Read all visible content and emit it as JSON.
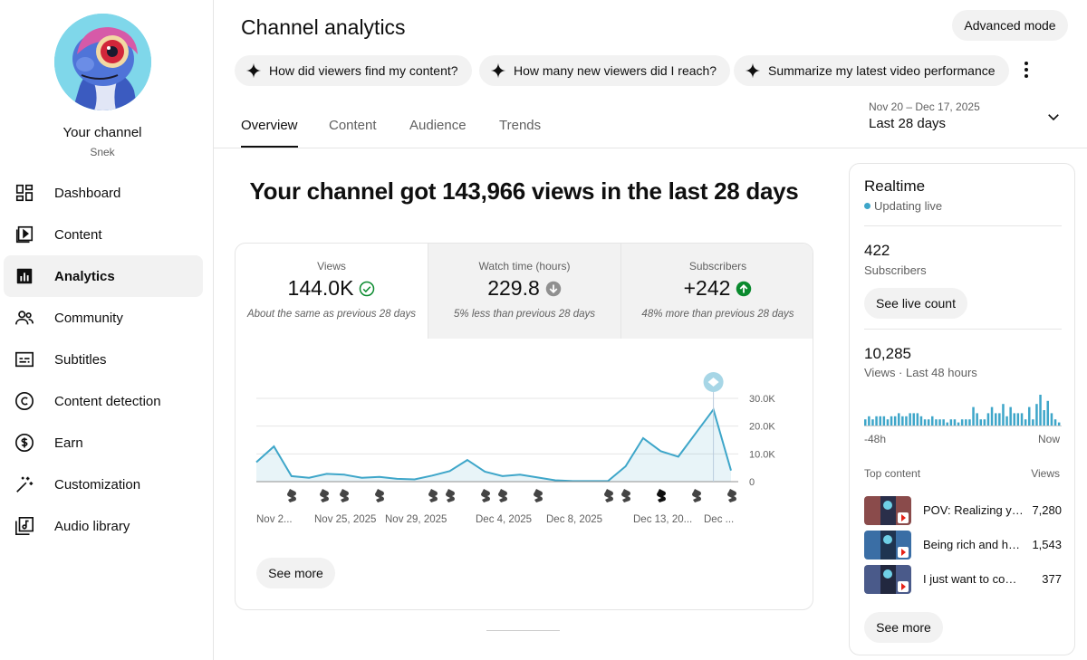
{
  "sidebar": {
    "channel_title": "Your channel",
    "channel_handle": "Snek",
    "items": [
      {
        "label": "Dashboard",
        "icon": "dashboard-icon"
      },
      {
        "label": "Content",
        "icon": "content-icon"
      },
      {
        "label": "Analytics",
        "icon": "analytics-icon",
        "active": true
      },
      {
        "label": "Community",
        "icon": "community-icon"
      },
      {
        "label": "Subtitles",
        "icon": "subtitles-icon"
      },
      {
        "label": "Content detection",
        "icon": "copyright-icon"
      },
      {
        "label": "Earn",
        "icon": "dollar-icon"
      },
      {
        "label": "Customization",
        "icon": "magic-wand-icon"
      },
      {
        "label": "Audio library",
        "icon": "music-library-icon"
      }
    ]
  },
  "header": {
    "title": "Channel analytics",
    "advanced_label": "Advanced mode",
    "chips": [
      "How did viewers find my content?",
      "How many new viewers did I reach?",
      "Summarize my latest video performance"
    ],
    "tabs": [
      "Overview",
      "Content",
      "Audience",
      "Trends"
    ],
    "date_range": "Nov 20 – Dec 17, 2025",
    "date_label": "Last 28 days"
  },
  "overview": {
    "headline": "Your channel got 143,966 views in the last 28 days",
    "metrics": [
      {
        "label": "Views",
        "value": "144.0K",
        "compare": "About the same as previous 28 days",
        "status": "check"
      },
      {
        "label": "Watch time (hours)",
        "value": "229.8",
        "compare": "5% less than previous 28 days",
        "status": "down"
      },
      {
        "label": "Subscribers",
        "value": "+242",
        "compare": "48% more than previous 28 days",
        "status": "up"
      }
    ],
    "see_more": "See more"
  },
  "chart_data": {
    "type": "area",
    "x_tick_labels": [
      "Nov 2...",
      "Nov 25, 2025",
      "Nov 29, 2025",
      "Dec 4, 2025",
      "Dec 8, 2025",
      "Dec 13, 20...",
      "Dec ..."
    ],
    "y_tick_labels": [
      "30.0K",
      "20.0K",
      "10.0K",
      "0"
    ],
    "ylim": [
      0,
      30000
    ],
    "values": [
      7000,
      12700,
      2000,
      1400,
      2800,
      2500,
      1400,
      1700,
      1000,
      800,
      2200,
      3800,
      7800,
      3600,
      2000,
      2500,
      1500,
      500,
      200,
      200,
      200,
      5500,
      15700,
      11000,
      9000,
      17500,
      26000,
      4000
    ],
    "color": "#3ea6c9",
    "legend": "none",
    "grid": true
  },
  "realtime": {
    "title": "Realtime",
    "status": "Updating live",
    "subscribers": "422",
    "subscribers_label": "Subscribers",
    "live_count_label": "See live count",
    "views": "10,285",
    "views_label": "Views · Last 48 hours",
    "bars": [
      2,
      3,
      2,
      3,
      3,
      3,
      2,
      3,
      3,
      4,
      3,
      3,
      4,
      4,
      4,
      3,
      2,
      2,
      3,
      2,
      2,
      2,
      1,
      2,
      2,
      1,
      2,
      2,
      2,
      6,
      4,
      2,
      2,
      4,
      6,
      4,
      4,
      7,
      3,
      6,
      4,
      4,
      4,
      2,
      6,
      2,
      7,
      10,
      5,
      8,
      4,
      2,
      1
    ],
    "axis_start": "-48h",
    "axis_end": "Now",
    "top_content_label": "Top content",
    "views_col_label": "Views",
    "rows": [
      {
        "title": "POV: Realizing your...",
        "views": "7,280"
      },
      {
        "title": "Being rich and having...",
        "views": "1,543"
      },
      {
        "title": "I just want to come home",
        "views": "377"
      }
    ],
    "see_more": "See more"
  }
}
